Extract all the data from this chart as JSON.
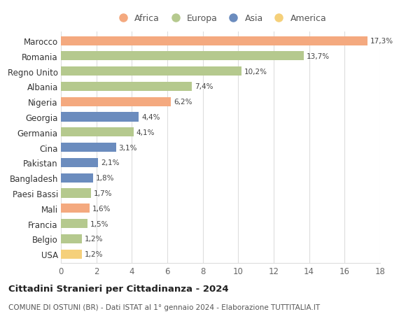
{
  "countries": [
    "Marocco",
    "Romania",
    "Regno Unito",
    "Albania",
    "Nigeria",
    "Georgia",
    "Germania",
    "Cina",
    "Pakistan",
    "Bangladesh",
    "Paesi Bassi",
    "Mali",
    "Francia",
    "Belgio",
    "USA"
  ],
  "values": [
    17.3,
    13.7,
    10.2,
    7.4,
    6.2,
    4.4,
    4.1,
    3.1,
    2.1,
    1.8,
    1.7,
    1.6,
    1.5,
    1.2,
    1.2
  ],
  "labels": [
    "17,3%",
    "13,7%",
    "10,2%",
    "7,4%",
    "6,2%",
    "4,4%",
    "4,1%",
    "3,1%",
    "2,1%",
    "1,8%",
    "1,7%",
    "1,6%",
    "1,5%",
    "1,2%",
    "1,2%"
  ],
  "continents": [
    "Africa",
    "Europa",
    "Europa",
    "Europa",
    "Africa",
    "Asia",
    "Europa",
    "Asia",
    "Asia",
    "Asia",
    "Europa",
    "Africa",
    "Europa",
    "Europa",
    "America"
  ],
  "continent_colors": {
    "Africa": "#F4A97F",
    "Europa": "#B5C98E",
    "Asia": "#6B8CBE",
    "America": "#F5D07A"
  },
  "legend_order": [
    "Africa",
    "Europa",
    "Asia",
    "America"
  ],
  "legend_colors": [
    "#F4A97F",
    "#B5C98E",
    "#6B8CBE",
    "#F5D07A"
  ],
  "title": "Cittadini Stranieri per Cittadinanza - 2024",
  "subtitle": "COMUNE DI OSTUNI (BR) - Dati ISTAT al 1° gennaio 2024 - Elaborazione TUTTITALIA.IT",
  "xlim": [
    0,
    18
  ],
  "xticks": [
    0,
    2,
    4,
    6,
    8,
    10,
    12,
    14,
    16,
    18
  ],
  "background_color": "#ffffff",
  "grid_color": "#dddddd"
}
